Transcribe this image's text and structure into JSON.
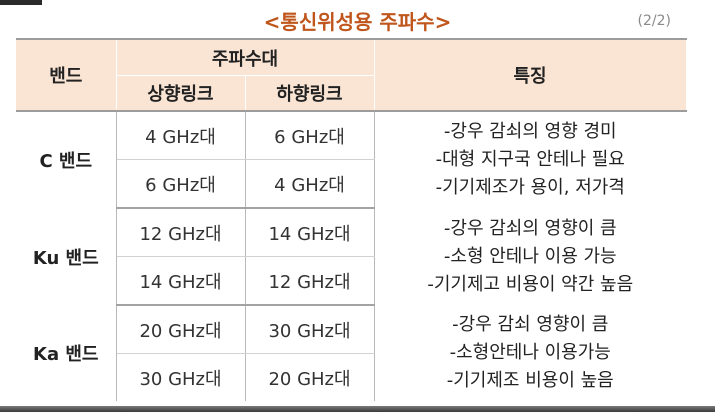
{
  "title": "<통신위성용 주파수>",
  "page_indicator": "(2/2)",
  "headers": {
    "band": "밴드",
    "frequency_band": "주파수대",
    "uplink": "상향링크",
    "downlink": "하향링크",
    "features": "특징"
  },
  "rows": [
    {
      "band": "C 밴드",
      "freqs": [
        {
          "up": "4 GHz대",
          "down": "6 GHz대"
        },
        {
          "up": "6 GHz대",
          "down": "4 GHz대"
        }
      ],
      "features": [
        "-강우 감쇠의 영향 경미",
        "-대형 지구국 안테나 필요",
        "-기기제조가 용이, 저가격"
      ]
    },
    {
      "band": "Ku 밴드",
      "freqs": [
        {
          "up": "12 GHz대",
          "down": "14 GHz대"
        },
        {
          "up": "14 GHz대",
          "down": "12 GHz대"
        }
      ],
      "features": [
        "-강우 감쇠의 영향이 큼",
        "-소형 안테나 이용 가능",
        "-기기제고 비용이 약간 높음"
      ]
    },
    {
      "band": "Ka 밴드",
      "freqs": [
        {
          "up": "20 GHz대",
          "down": "30 GHz대"
        },
        {
          "up": "30 GHz대",
          "down": "20 GHz대"
        }
      ],
      "features": [
        "-강우 감쇠 영향이 큼",
        "-소형안테나 이용가능",
        "-기기제조 비용이 높음"
      ]
    }
  ],
  "colors": {
    "title": "#c0561b",
    "header_bg": "#fae5d4"
  }
}
